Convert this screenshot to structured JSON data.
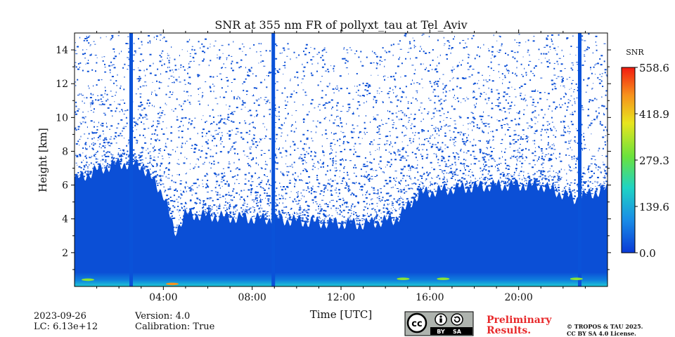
{
  "chart_data": {
    "type": "heatmap",
    "title": "SNR at 355 nm FR of pollyxt_tau at Tel_Aviv",
    "xlabel": "Time [UTC]",
    "ylabel": "Height [km]",
    "xlim_hours": [
      0,
      24
    ],
    "ylim_km": [
      0,
      15
    ],
    "x_ticks": [
      {
        "value": 4,
        "label": "04:00"
      },
      {
        "value": 8,
        "label": "08:00"
      },
      {
        "value": 12,
        "label": "12:00"
      },
      {
        "value": 16,
        "label": "16:00"
      },
      {
        "value": 20,
        "label": "20:00"
      }
    ],
    "y_ticks": [
      {
        "value": 2,
        "label": "2"
      },
      {
        "value": 4,
        "label": "4"
      },
      {
        "value": 6,
        "label": "6"
      },
      {
        "value": 8,
        "label": "8"
      },
      {
        "value": 10,
        "label": "10"
      },
      {
        "value": 12,
        "label": "12"
      },
      {
        "value": 14,
        "label": "14"
      }
    ],
    "colorbar": {
      "label": "SNR",
      "min": 0.0,
      "max": 558.6,
      "ticks": [
        {
          "value": 0.0,
          "label": "0.0"
        },
        {
          "value": 139.6,
          "label": "139.6"
        },
        {
          "value": 279.3,
          "label": "279.3"
        },
        {
          "value": 418.9,
          "label": "418.9"
        },
        {
          "value": 558.6,
          "label": "558.6"
        }
      ],
      "colormap": "jet"
    },
    "signal_top_km": [
      {
        "t": 0.0,
        "h": 6.3
      },
      {
        "t": 1.0,
        "h": 6.9
      },
      {
        "t": 2.0,
        "h": 7.3
      },
      {
        "t": 3.0,
        "h": 7.2
      },
      {
        "t": 4.0,
        "h": 5.5
      },
      {
        "t": 4.5,
        "h": 3.2
      },
      {
        "t": 5.0,
        "h": 4.3
      },
      {
        "t": 6.0,
        "h": 4.2
      },
      {
        "t": 7.0,
        "h": 4.1
      },
      {
        "t": 9.0,
        "h": 4.0
      },
      {
        "t": 11.0,
        "h": 3.8
      },
      {
        "t": 13.0,
        "h": 3.7
      },
      {
        "t": 14.5,
        "h": 4.0
      },
      {
        "t": 15.5,
        "h": 5.5
      },
      {
        "t": 17.0,
        "h": 5.8
      },
      {
        "t": 19.0,
        "h": 6.0
      },
      {
        "t": 21.0,
        "h": 6.0
      },
      {
        "t": 22.5,
        "h": 5.2
      },
      {
        "t": 24.0,
        "h": 5.8
      }
    ],
    "missing_data_stripes_hours": [
      2.55,
      8.95,
      22.75
    ],
    "near_surface_hotspots": [
      {
        "t": 0.6,
        "h": 0.4,
        "snr": 300
      },
      {
        "t": 4.4,
        "h": 0.15,
        "snr": 420
      },
      {
        "t": 14.8,
        "h": 0.45,
        "snr": 260
      },
      {
        "t": 16.6,
        "h": 0.45,
        "snr": 280
      },
      {
        "t": 22.6,
        "h": 0.45,
        "snr": 300
      }
    ]
  },
  "footer": {
    "date": "2023-09-26",
    "lc": "LC: 6.13e+12",
    "version": "Version: 4.0",
    "calibration": "Calibration: True",
    "preliminary_line1": "Preliminary",
    "preliminary_line2": "Results.",
    "copyright_line1": "© TROPOS & TAU 2025.",
    "copyright_line2": "CC BY SA 4.0 License."
  },
  "license_badge": {
    "cc": "cc",
    "by": "BY",
    "sa": "SA"
  },
  "colors": {
    "signal_blue": "#0b4fd6",
    "stripe_blue": "#0a52d8",
    "surface_cyan": "#19c3d0",
    "prelim_red": "#e8292b"
  }
}
